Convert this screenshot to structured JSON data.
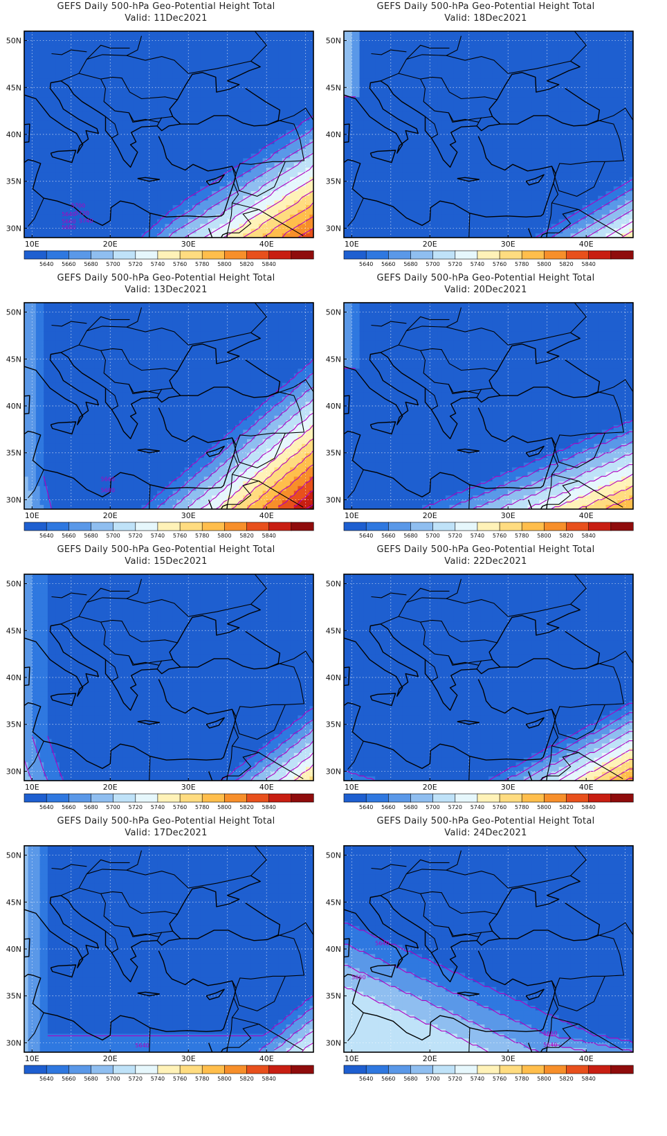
{
  "panels": [
    {
      "title": "GEFS Daily 500-hPa Geo-Potential Height Total",
      "valid": "Valid: 11Dec2021",
      "pattern": "ridge-se-strong",
      "contour_labels": [
        "5640",
        "5660",
        "5680",
        "5700",
        "5720",
        "5740"
      ]
    },
    {
      "title": "GEFS Daily 500-hPa Geo-Potential Height Total",
      "valid": "Valid: 18Dec2021",
      "pattern": "trough-weak-se",
      "contour_labels": []
    },
    {
      "title": "GEFS Daily 500-hPa Geo-Potential Height Total",
      "valid": "Valid: 13Dec2021",
      "pattern": "ridge-se-very-strong",
      "contour_labels": [
        "5660",
        "5680"
      ]
    },
    {
      "title": "GEFS Daily 500-hPa Geo-Potential Height Total",
      "valid": "Valid: 20Dec2021",
      "pattern": "ridge-se-moderate",
      "contour_labels": []
    },
    {
      "title": "GEFS Daily 500-hPa Geo-Potential Height Total",
      "valid": "Valid: 15Dec2021",
      "pattern": "trough-mid",
      "contour_labels": []
    },
    {
      "title": "GEFS Daily 500-hPa Geo-Potential Height Total",
      "valid": "Valid: 22Dec2021",
      "pattern": "ridge-se-corner",
      "contour_labels": []
    },
    {
      "title": "GEFS Daily 500-hPa Geo-Potential Height Total",
      "valid": "Valid: 17Dec2021",
      "pattern": "trough-west",
      "contour_labels": [
        "5640"
      ]
    },
    {
      "title": "GEFS Daily 500-hPa Geo-Potential Height Total",
      "valid": "Valid: 24Dec2021",
      "pattern": "ridge-sw",
      "contour_labels": [
        "5640",
        "5660",
        "5660",
        "5640"
      ]
    }
  ],
  "axes": {
    "lat_labels": [
      "50N",
      "45N",
      "40N",
      "35N",
      "30N"
    ],
    "lon_labels": [
      "10E",
      "20E",
      "30E",
      "40E"
    ]
  },
  "colorbar": {
    "labels": [
      "5640",
      "5660",
      "5680",
      "5700",
      "5720",
      "5740",
      "5760",
      "5780",
      "5800",
      "5820",
      "5840"
    ],
    "colors": [
      "#1e5fd0",
      "#2f78e0",
      "#5a98e8",
      "#8fbef0",
      "#bfe2f8",
      "#e6f7fc",
      "#fff2b8",
      "#ffdc80",
      "#ffbe4c",
      "#f78f2a",
      "#e8501c",
      "#c81e12",
      "#8f0c0c"
    ]
  },
  "colors": {
    "contour": "#b000c0",
    "coast": "#000000",
    "frame": "#000000"
  }
}
